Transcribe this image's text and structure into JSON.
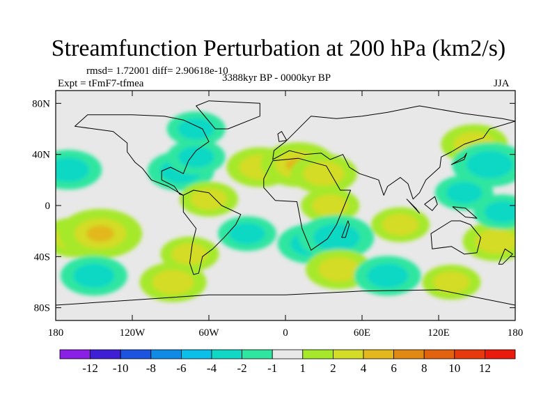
{
  "chart_data": {
    "type": "heatmap",
    "title": "Streamfunction Perturbation at 200 hPa (km2/s)",
    "stats_text": "rmsd= 1.72001  diff= 2.90618e-10",
    "experiment": "Expt = tFmF7-tfmea",
    "period": "3388kyr BP - 0000kyr BP",
    "season": "JJA",
    "x_axis": {
      "range": [
        -180,
        180
      ],
      "ticks": [
        -180,
        -120,
        -60,
        0,
        60,
        120,
        180
      ],
      "tick_labels": [
        "180",
        "120W",
        "60W",
        "0",
        "60E",
        "120E",
        "180"
      ]
    },
    "y_axis": {
      "range": [
        -90,
        90
      ],
      "ticks": [
        80,
        40,
        0,
        -40,
        -80
      ],
      "tick_labels": [
        "80N",
        "40N",
        "0",
        "40S",
        "80S"
      ]
    },
    "colorbar": {
      "labels": [
        "-12",
        "-10",
        "-8",
        "-6",
        "-4",
        "-2",
        "-1",
        "1",
        "2",
        "4",
        "6",
        "8",
        "10",
        "12"
      ],
      "colors": [
        "#8a1fe6",
        "#3f1fd6",
        "#1c54e0",
        "#0f8be6",
        "#0cbfe8",
        "#10d8c4",
        "#2ee6a0",
        "#e8e8e8",
        "#a6e82a",
        "#d4dc28",
        "#e2b81c",
        "#e08a14",
        "#e2620e",
        "#e63a0c",
        "#ea1a0c"
      ]
    },
    "anomaly_regions": [
      {
        "lon": -170,
        "lat": 28,
        "value": -3
      },
      {
        "lon": -165,
        "lat": -25,
        "value": 3
      },
      {
        "lon": -145,
        "lat": -22,
        "value": 5
      },
      {
        "lon": -150,
        "lat": -55,
        "value": -3
      },
      {
        "lon": -88,
        "lat": -60,
        "value": 3
      },
      {
        "lon": -75,
        "lat": -38,
        "value": 2
      },
      {
        "lon": -82,
        "lat": 27,
        "value": -3
      },
      {
        "lon": -70,
        "lat": 38,
        "value": -2
      },
      {
        "lon": -70,
        "lat": 60,
        "value": -2
      },
      {
        "lon": -60,
        "lat": 5,
        "value": 2
      },
      {
        "lon": -20,
        "lat": 30,
        "value": 3
      },
      {
        "lon": 10,
        "lat": 32,
        "value": 4
      },
      {
        "lon": 30,
        "lat": 25,
        "value": 3
      },
      {
        "lon": 35,
        "lat": 0,
        "value": 2
      },
      {
        "lon": 20,
        "lat": -30,
        "value": -3
      },
      {
        "lon": 40,
        "lat": -25,
        "value": -4
      },
      {
        "lon": -30,
        "lat": -22,
        "value": -2
      },
      {
        "lon": 42,
        "lat": -50,
        "value": 3
      },
      {
        "lon": 80,
        "lat": -55,
        "value": -3
      },
      {
        "lon": 90,
        "lat": -15,
        "value": 2
      },
      {
        "lon": 148,
        "lat": 48,
        "value": 3
      },
      {
        "lon": 160,
        "lat": 32,
        "value": -4
      },
      {
        "lon": 140,
        "lat": 10,
        "value": -2
      },
      {
        "lon": 165,
        "lat": -28,
        "value": 3
      },
      {
        "lon": 170,
        "lat": -5,
        "value": -2
      },
      {
        "lon": 130,
        "lat": -60,
        "value": 2
      }
    ],
    "coastlines": [
      {
        "name": "North America",
        "points": [
          [
            -165,
            62
          ],
          [
            -155,
            71
          ],
          [
            -120,
            71
          ],
          [
            -95,
            70
          ],
          [
            -80,
            67
          ],
          [
            -65,
            60
          ],
          [
            -60,
            50
          ],
          [
            -70,
            43
          ],
          [
            -76,
            35
          ],
          [
            -80,
            25
          ],
          [
            -90,
            30
          ],
          [
            -97,
            27
          ],
          [
            -97,
            20
          ],
          [
            -87,
            15
          ],
          [
            -83,
            9
          ],
          [
            -80,
            8
          ],
          [
            -92,
            15
          ],
          [
            -105,
            20
          ],
          [
            -112,
            29
          ],
          [
            -118,
            34
          ],
          [
            -124,
            42
          ],
          [
            -124,
            49
          ],
          [
            -135,
            58
          ],
          [
            -150,
            60
          ],
          [
            -165,
            62
          ]
        ]
      },
      {
        "name": "Greenland",
        "points": [
          [
            -55,
            60
          ],
          [
            -45,
            60
          ],
          [
            -20,
            70
          ],
          [
            -20,
            80
          ],
          [
            -60,
            82
          ],
          [
            -70,
            78
          ],
          [
            -55,
            60
          ]
        ]
      },
      {
        "name": "South America",
        "points": [
          [
            -80,
            8
          ],
          [
            -72,
            12
          ],
          [
            -60,
            10
          ],
          [
            -50,
            0
          ],
          [
            -35,
            -7
          ],
          [
            -39,
            -15
          ],
          [
            -48,
            -25
          ],
          [
            -57,
            -34
          ],
          [
            -65,
            -40
          ],
          [
            -68,
            -53
          ],
          [
            -72,
            -54
          ],
          [
            -75,
            -45
          ],
          [
            -73,
            -30
          ],
          [
            -70,
            -18
          ],
          [
            -80,
            -5
          ],
          [
            -80,
            8
          ]
        ]
      },
      {
        "name": "Africa",
        "points": [
          [
            -17,
            21
          ],
          [
            -10,
            35
          ],
          [
            10,
            37
          ],
          [
            32,
            31
          ],
          [
            43,
            12
          ],
          [
            51,
            12
          ],
          [
            40,
            -15
          ],
          [
            33,
            -26
          ],
          [
            20,
            -35
          ],
          [
            13,
            -18
          ],
          [
            9,
            3
          ],
          [
            -8,
            4
          ],
          [
            -17,
            14
          ],
          [
            -17,
            21
          ]
        ]
      },
      {
        "name": "Eurasia",
        "points": [
          [
            -10,
            36
          ],
          [
            -9,
            43
          ],
          [
            0,
            50
          ],
          [
            8,
            58
          ],
          [
            20,
            70
          ],
          [
            40,
            68
          ],
          [
            60,
            70
          ],
          [
            80,
            73
          ],
          [
            105,
            78
          ],
          [
            140,
            72
          ],
          [
            170,
            68
          ],
          [
            180,
            66
          ],
          [
            160,
            60
          ],
          [
            155,
            53
          ],
          [
            140,
            48
          ],
          [
            130,
            42
          ],
          [
            122,
            38
          ],
          [
            121,
            30
          ],
          [
            110,
            20
          ],
          [
            105,
            10
          ],
          [
            100,
            5
          ],
          [
            96,
            17
          ],
          [
            90,
            22
          ],
          [
            80,
            15
          ],
          [
            77,
            8
          ],
          [
            73,
            20
          ],
          [
            58,
            25
          ],
          [
            50,
            30
          ],
          [
            45,
            40
          ],
          [
            35,
            36
          ],
          [
            28,
            41
          ],
          [
            15,
            40
          ],
          [
            3,
            43
          ],
          [
            -10,
            36
          ]
        ]
      },
      {
        "name": "Australia",
        "points": [
          [
            114,
            -22
          ],
          [
            130,
            -12
          ],
          [
            137,
            -12
          ],
          [
            145,
            -15
          ],
          [
            153,
            -25
          ],
          [
            150,
            -37
          ],
          [
            140,
            -38
          ],
          [
            130,
            -32
          ],
          [
            115,
            -34
          ],
          [
            114,
            -22
          ]
        ]
      },
      {
        "name": "Antarctica",
        "points": [
          [
            -180,
            -78
          ],
          [
            -120,
            -74
          ],
          [
            -60,
            -70
          ],
          [
            0,
            -70
          ],
          [
            60,
            -67
          ],
          [
            120,
            -66
          ],
          [
            180,
            -78
          ]
        ]
      },
      {
        "name": "New Guinea",
        "points": [
          [
            131,
            -1
          ],
          [
            141,
            -2
          ],
          [
            150,
            -10
          ],
          [
            141,
            -9
          ],
          [
            131,
            -1
          ]
        ]
      },
      {
        "name": "Borneo",
        "points": [
          [
            109,
            1
          ],
          [
            117,
            7
          ],
          [
            119,
            1
          ],
          [
            115,
            -4
          ],
          [
            109,
            1
          ]
        ]
      },
      {
        "name": "Japan",
        "points": [
          [
            130,
            32
          ],
          [
            135,
            34
          ],
          [
            140,
            36
          ],
          [
            142,
            41
          ],
          [
            140,
            38
          ],
          [
            135,
            35
          ],
          [
            130,
            32
          ]
        ]
      },
      {
        "name": "Madagascar",
        "points": [
          [
            44,
            -25
          ],
          [
            47,
            -25
          ],
          [
            50,
            -15
          ],
          [
            49,
            -12
          ],
          [
            44,
            -25
          ]
        ]
      },
      {
        "name": "UK",
        "points": [
          [
            -5,
            50
          ],
          [
            1,
            51
          ],
          [
            -3,
            58
          ],
          [
            -6,
            56
          ],
          [
            -5,
            50
          ]
        ]
      },
      {
        "name": "Sumatra",
        "points": [
          [
            95,
            5
          ],
          [
            105,
            -6
          ],
          [
            102,
            -2
          ],
          [
            95,
            5
          ]
        ]
      },
      {
        "name": "New Zealand",
        "points": [
          [
            172,
            -34
          ],
          [
            178,
            -38
          ],
          [
            170,
            -46
          ],
          [
            167,
            -46
          ],
          [
            172,
            -34
          ]
        ]
      }
    ]
  }
}
